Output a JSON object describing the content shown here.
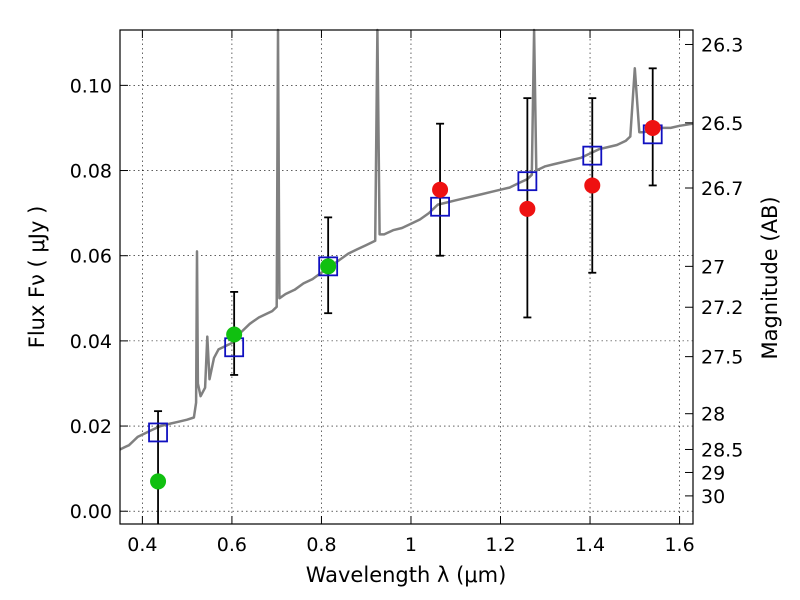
{
  "chart_data": {
    "type": "scatter",
    "xlabel": "Wavelength  λ (μm)",
    "ylabel": "Flux  Fν  ( μJy )",
    "y2label": "Magnitude (AB)",
    "xlim": [
      0.35,
      1.63
    ],
    "ylim": [
      -0.003,
      0.113
    ],
    "x_ticks": [
      0.4,
      0.6,
      0.8,
      1.0,
      1.2,
      1.4,
      1.6
    ],
    "x_tick_labels": [
      "0.4",
      "0.6",
      "0.8",
      "1",
      "1.2",
      "1.4",
      "1.6"
    ],
    "y_ticks": [
      0.0,
      0.02,
      0.04,
      0.06,
      0.08,
      0.1
    ],
    "y_tick_labels": [
      "0.00",
      "0.02",
      "0.04",
      "0.06",
      "0.08",
      "0.10"
    ],
    "mag_ticks": [
      {
        "label": "26.3",
        "flux": 0.1096
      },
      {
        "label": "26.5",
        "flux": 0.0912
      },
      {
        "label": "26.7",
        "flux": 0.0759
      },
      {
        "label": "27",
        "flux": 0.0575
      },
      {
        "label": "27.2",
        "flux": 0.0479
      },
      {
        "label": "27.5",
        "flux": 0.0363
      },
      {
        "label": "28",
        "flux": 0.0229
      },
      {
        "label": "28.5",
        "flux": 0.0145
      },
      {
        "label": "29",
        "flux": 0.0091
      },
      {
        "label": "30",
        "flux": 0.0036
      }
    ],
    "grid": true,
    "series": [
      {
        "kind": "spectrum",
        "color": "#808080",
        "points": [
          [
            0.35,
            0.0145
          ],
          [
            0.36,
            0.015
          ],
          [
            0.37,
            0.0155
          ],
          [
            0.38,
            0.0165
          ],
          [
            0.39,
            0.0175
          ],
          [
            0.4,
            0.018
          ],
          [
            0.42,
            0.019
          ],
          [
            0.44,
            0.02
          ],
          [
            0.46,
            0.0205
          ],
          [
            0.48,
            0.021
          ],
          [
            0.5,
            0.0215
          ],
          [
            0.515,
            0.022
          ],
          [
            0.52,
            0.0255
          ],
          [
            0.522,
            0.061
          ],
          [
            0.524,
            0.03
          ],
          [
            0.53,
            0.027
          ],
          [
            0.54,
            0.029
          ],
          [
            0.545,
            0.041
          ],
          [
            0.55,
            0.031
          ],
          [
            0.56,
            0.036
          ],
          [
            0.57,
            0.038
          ],
          [
            0.58,
            0.0385
          ],
          [
            0.59,
            0.039
          ],
          [
            0.6,
            0.0395
          ],
          [
            0.62,
            0.042
          ],
          [
            0.64,
            0.044
          ],
          [
            0.66,
            0.0455
          ],
          [
            0.68,
            0.0465
          ],
          [
            0.69,
            0.047
          ],
          [
            0.7,
            0.048
          ],
          [
            0.703,
            0.113
          ],
          [
            0.706,
            0.05
          ],
          [
            0.72,
            0.051
          ],
          [
            0.74,
            0.052
          ],
          [
            0.76,
            0.0535
          ],
          [
            0.78,
            0.0545
          ],
          [
            0.8,
            0.056
          ],
          [
            0.82,
            0.0575
          ],
          [
            0.84,
            0.059
          ],
          [
            0.86,
            0.0605
          ],
          [
            0.88,
            0.0615
          ],
          [
            0.9,
            0.0625
          ],
          [
            0.92,
            0.0635
          ],
          [
            0.925,
            0.113
          ],
          [
            0.93,
            0.065
          ],
          [
            0.94,
            0.065
          ],
          [
            0.96,
            0.066
          ],
          [
            0.98,
            0.0665
          ],
          [
            1.0,
            0.0675
          ],
          [
            1.02,
            0.0685
          ],
          [
            1.04,
            0.07
          ],
          [
            1.06,
            0.072
          ],
          [
            1.08,
            0.0725
          ],
          [
            1.1,
            0.073
          ],
          [
            1.12,
            0.0735
          ],
          [
            1.14,
            0.074
          ],
          [
            1.16,
            0.0745
          ],
          [
            1.18,
            0.075
          ],
          [
            1.2,
            0.0755
          ],
          [
            1.22,
            0.076
          ],
          [
            1.24,
            0.077
          ],
          [
            1.26,
            0.078
          ],
          [
            1.27,
            0.079
          ],
          [
            1.275,
            0.113
          ],
          [
            1.28,
            0.08
          ],
          [
            1.3,
            0.081
          ],
          [
            1.32,
            0.0815
          ],
          [
            1.34,
            0.082
          ],
          [
            1.36,
            0.0825
          ],
          [
            1.38,
            0.083
          ],
          [
            1.4,
            0.084
          ],
          [
            1.42,
            0.085
          ],
          [
            1.44,
            0.0855
          ],
          [
            1.46,
            0.086
          ],
          [
            1.48,
            0.087
          ],
          [
            1.49,
            0.088
          ],
          [
            1.5,
            0.104
          ],
          [
            1.51,
            0.089
          ],
          [
            1.52,
            0.089
          ],
          [
            1.54,
            0.0895
          ],
          [
            1.56,
            0.09
          ],
          [
            1.58,
            0.09
          ],
          [
            1.6,
            0.0905
          ],
          [
            1.63,
            0.091
          ]
        ]
      },
      {
        "kind": "model-boxes",
        "color": "#1010c0",
        "points": [
          {
            "x": 0.435,
            "y": 0.0185
          },
          {
            "x": 0.605,
            "y": 0.0385
          },
          {
            "x": 0.815,
            "y": 0.0575
          },
          {
            "x": 1.065,
            "y": 0.0715
          },
          {
            "x": 1.26,
            "y": 0.0775
          },
          {
            "x": 1.405,
            "y": 0.0835
          },
          {
            "x": 1.54,
            "y": 0.0885
          }
        ]
      },
      {
        "kind": "errorbars",
        "color": "#000000",
        "points": [
          {
            "x": 0.435,
            "low": -0.003,
            "high": 0.0235
          },
          {
            "x": 0.605,
            "low": 0.032,
            "high": 0.0515
          },
          {
            "x": 0.815,
            "low": 0.0465,
            "high": 0.069
          },
          {
            "x": 1.065,
            "low": 0.06,
            "high": 0.091
          },
          {
            "x": 1.26,
            "low": 0.0455,
            "high": 0.097
          },
          {
            "x": 1.405,
            "low": 0.056,
            "high": 0.097
          },
          {
            "x": 1.54,
            "low": 0.0765,
            "high": 0.104
          }
        ]
      },
      {
        "kind": "observed-green",
        "color": "#10c010",
        "points": [
          {
            "x": 0.435,
            "y": 0.007
          },
          {
            "x": 0.605,
            "y": 0.0415
          },
          {
            "x": 0.815,
            "y": 0.0575
          }
        ]
      },
      {
        "kind": "observed-red",
        "color": "#ee1111",
        "points": [
          {
            "x": 1.065,
            "y": 0.0755
          },
          {
            "x": 1.26,
            "y": 0.071
          },
          {
            "x": 1.405,
            "y": 0.0765
          },
          {
            "x": 1.54,
            "y": 0.09
          }
        ]
      }
    ]
  }
}
